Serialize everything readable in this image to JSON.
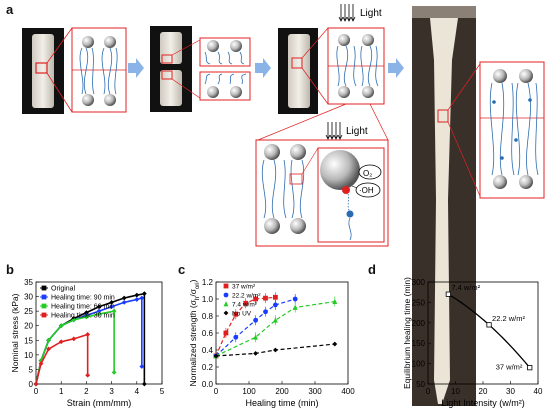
{
  "panel_labels": {
    "a": "a",
    "b": "b",
    "c": "c",
    "d": "d"
  },
  "schematic": {
    "light_label_top": "Light",
    "light_label_zoom": "Light",
    "o2_label": "O₂",
    "oh_label": "·OH"
  },
  "colors": {
    "accent_red": "#e02020",
    "arrow_blue": "#8ab4e8",
    "chain_blue": "#2b6cb0",
    "green": "#22cc22",
    "black": "#000000",
    "blue": "#1a3cff"
  },
  "chart_data": [
    {
      "id": "b",
      "type": "line",
      "xlabel": "Strain (mm/mm)",
      "ylabel": "Nominal stress (kPa)",
      "xlim": [
        0,
        5
      ],
      "ylim": [
        0,
        35
      ],
      "xticks": [
        "0",
        "1",
        "2",
        "3",
        "4",
        "5"
      ],
      "yticks": [
        "0",
        "5",
        "10",
        "15",
        "20",
        "25",
        "30",
        "35"
      ],
      "legend_position": "top-left",
      "series": [
        {
          "name": "Original",
          "color": "#000000",
          "x": [
            0,
            0.2,
            0.5,
            1,
            1.5,
            2,
            2.5,
            3,
            3.5,
            4,
            4.3,
            4.3
          ],
          "y": [
            0,
            8,
            15,
            20,
            22.5,
            24.5,
            26.5,
            28,
            29.5,
            30.5,
            31,
            0
          ]
        },
        {
          "name": "Healing time: 90 min",
          "color": "#1a3cff",
          "x": [
            0,
            0.2,
            0.5,
            1,
            1.5,
            2,
            2.5,
            3,
            3.5,
            4,
            4.2,
            4.2
          ],
          "y": [
            0,
            8,
            15,
            20,
            22,
            23.5,
            25,
            26.5,
            28,
            29,
            29.5,
            6
          ]
        },
        {
          "name": "Healing time: 60 min",
          "color": "#22cc22",
          "x": [
            0,
            0.2,
            0.5,
            1,
            1.5,
            2,
            2.5,
            3.1,
            3.1
          ],
          "y": [
            0,
            8,
            15,
            20,
            22,
            23,
            24,
            25,
            4
          ]
        },
        {
          "name": "Healing time: 30 min",
          "color": "#e02020",
          "x": [
            0,
            0.2,
            0.5,
            1,
            1.5,
            2.05,
            2.05
          ],
          "y": [
            0,
            7,
            12,
            14.5,
            15.5,
            17,
            3
          ]
        }
      ]
    },
    {
      "id": "c",
      "type": "scatter",
      "xlabel": "Healing time (min)",
      "ylabel": "Normalized strength (σ_h/σ_ori)",
      "ylabel_parts": {
        "main": "Normalized strength (σ",
        "sub1": "h",
        "mid": "/σ",
        "sub2": "ori",
        "end": ")"
      },
      "xlim": [
        0,
        400
      ],
      "ylim": [
        0,
        1.2
      ],
      "xticks": [
        "0",
        "100",
        "200",
        "300",
        "400"
      ],
      "yticks": [
        "0.0",
        "0.2",
        "0.4",
        "0.6",
        "0.8",
        "1.0",
        "1.2"
      ],
      "legend_position": "top-left",
      "series": [
        {
          "name": "37 w/m²",
          "color": "#e02020",
          "marker": "square",
          "x": [
            0,
            30,
            60,
            90,
            120,
            150,
            180
          ],
          "y": [
            0.33,
            0.6,
            0.82,
            0.95,
            1.0,
            1.01,
            1.02
          ]
        },
        {
          "name": "22.2 w/m²",
          "color": "#1a3cff",
          "marker": "circle",
          "x": [
            0,
            60,
            120,
            150,
            180,
            240
          ],
          "y": [
            0.33,
            0.55,
            0.75,
            0.85,
            0.93,
            1.0
          ]
        },
        {
          "name": "7.4 w/m²",
          "color": "#22cc22",
          "marker": "triangle",
          "x": [
            0,
            120,
            180,
            240,
            360
          ],
          "y": [
            0.33,
            0.55,
            0.75,
            0.9,
            0.97
          ]
        },
        {
          "name": "No UV",
          "color": "#000000",
          "marker": "diamond",
          "x": [
            0,
            120,
            180,
            360
          ],
          "y": [
            0.33,
            0.36,
            0.4,
            0.47
          ]
        }
      ]
    },
    {
      "id": "d",
      "type": "line",
      "xlabel": "Light Intensity (w/m²)",
      "ylabel": "Equilibrium healing time (min)",
      "xlim": [
        0,
        40
      ],
      "ylim": [
        50,
        300
      ],
      "xticks": [
        "0",
        "10",
        "20",
        "30",
        "40"
      ],
      "yticks": [
        "50",
        "100",
        "150",
        "200",
        "250",
        "300"
      ],
      "series": [
        {
          "name": "",
          "color": "#000000",
          "x": [
            7.4,
            22.2,
            37
          ],
          "y": [
            270,
            195,
            90
          ]
        }
      ],
      "annotations": [
        "7.4 w/m²",
        "22.2 w/m²",
        "37 w/m²"
      ]
    }
  ]
}
